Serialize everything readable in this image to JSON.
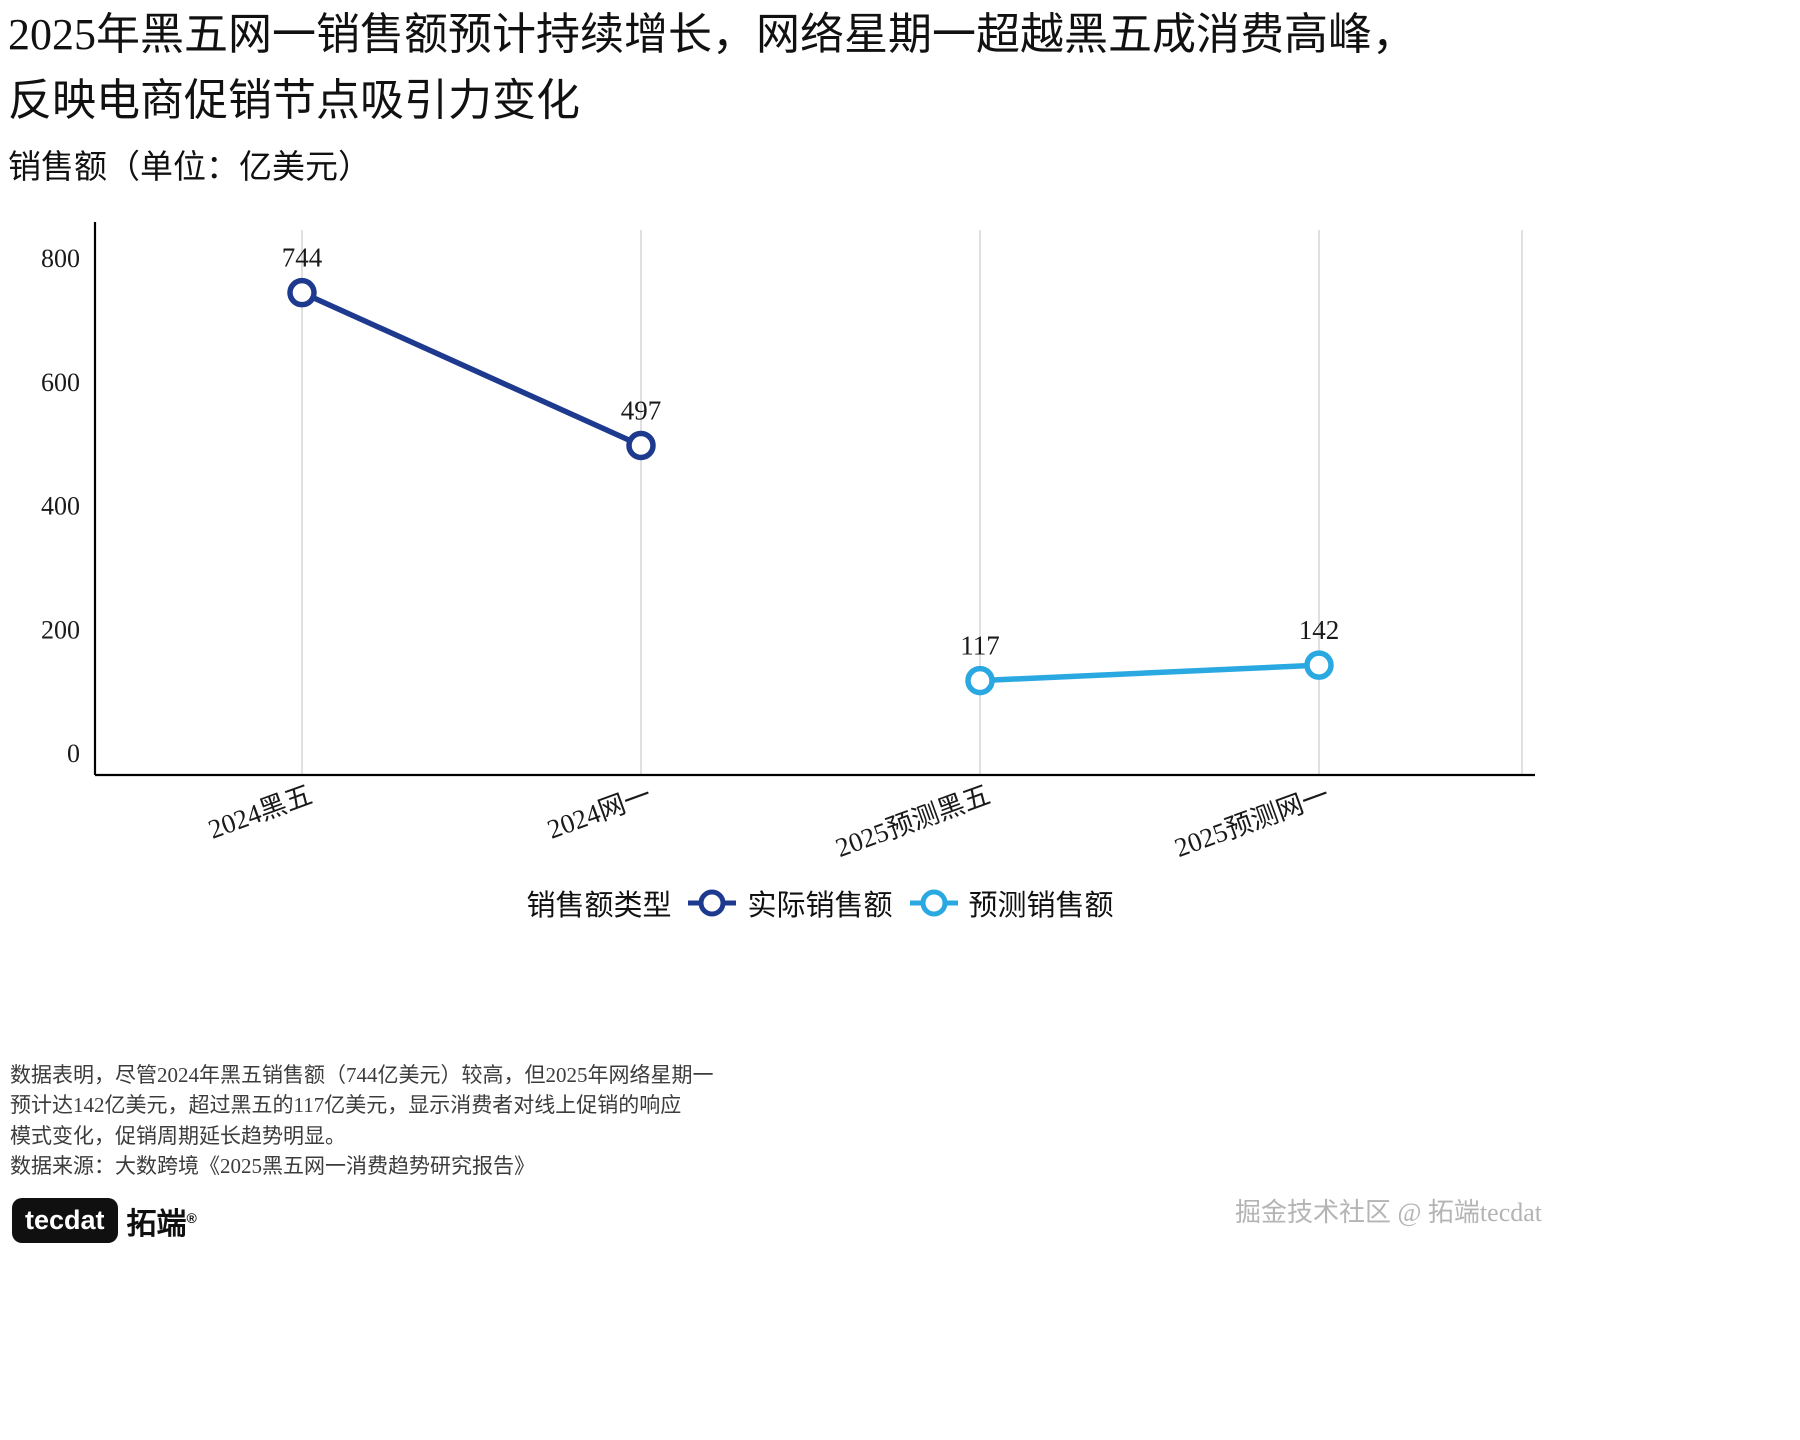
{
  "chart_data": {
    "type": "line",
    "title_lines": [
      "2025年黑五网一销售额预计持续增长，网络星期一超越黑五成消费高峰，",
      "反映电商促销节点吸引力变化"
    ],
    "subtitle": "销售额（单位：亿美元）",
    "categories": [
      "2024黑五",
      "2024网一",
      "2025预测黑五",
      "2025预测网一"
    ],
    "series": [
      {
        "name": "实际销售额",
        "color": "#1d3a8f",
        "values": [
          744,
          497,
          null,
          null
        ]
      },
      {
        "name": "预测销售额",
        "color": "#29a8e1",
        "values": [
          null,
          null,
          117,
          142
        ]
      }
    ],
    "ylim": [
      0,
      800
    ],
    "yticks": [
      0,
      200,
      400,
      600,
      800
    ],
    "legend_title": "销售额类型",
    "legend_position": "bottom",
    "grid": "vertical-only",
    "grid_color": "#d9d9d9",
    "axis_color": "#000000"
  },
  "caption": {
    "lines": [
      "数据表明，尽管2024年黑五销售额（744亿美元）较高，但2025年网络星期一",
      "预计达142亿美元，超过黑五的117亿美元，显示消费者对线上促销的响应",
      "模式变化，促销周期延长趋势明显。",
      "数据来源：大数跨境《2025黑五网一消费趋势研究报告》"
    ]
  },
  "footer": {
    "logo_text": "tecdat",
    "logo_brand": "拓端",
    "logo_reg": "®",
    "watermark": "掘金技术社区 @ 拓端tecdat"
  }
}
